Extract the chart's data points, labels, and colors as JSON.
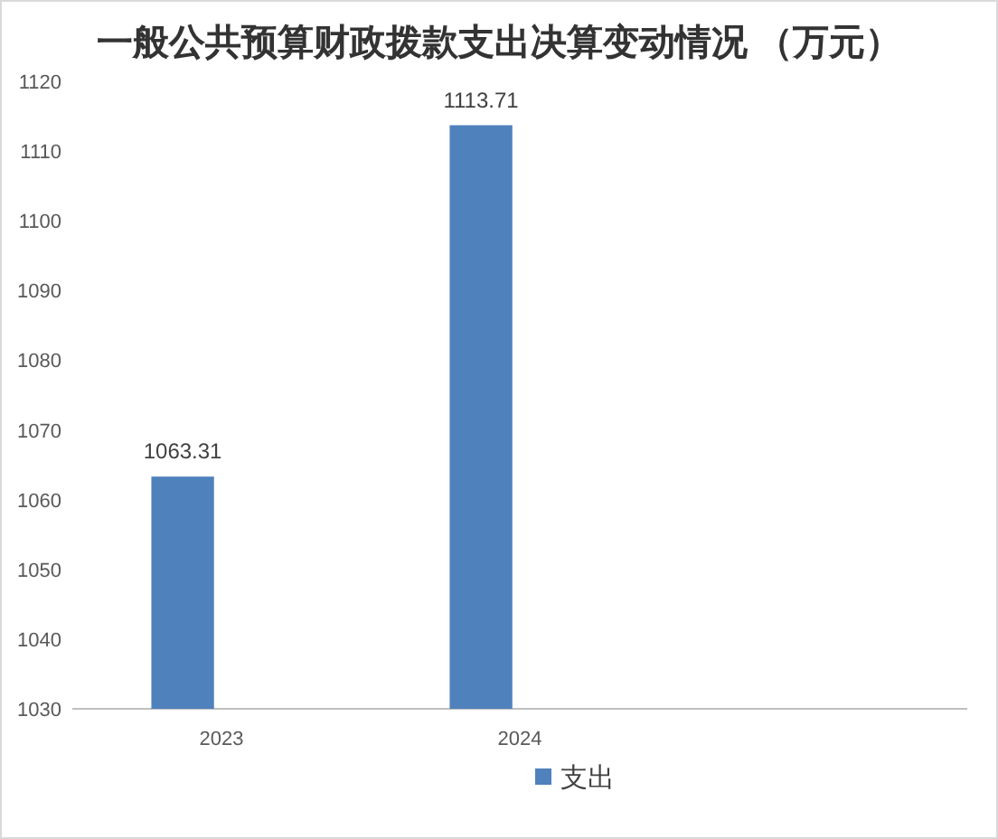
{
  "chart_data": {
    "type": "bar",
    "title": "一般公共预算财政拨款支出决算变动情况 （万元）",
    "categories": [
      "2023",
      "2024",
      null
    ],
    "series": [
      {
        "name": "支出",
        "color": "#4f81bd",
        "values": [
          1063.31,
          1113.71,
          null
        ]
      }
    ],
    "ylim": [
      1030,
      1120
    ],
    "yticks": [
      1030,
      1040,
      1050,
      1060,
      1070,
      1080,
      1090,
      1100,
      1110,
      1120
    ],
    "data_labels": true,
    "legend": "bottom",
    "grid": false
  }
}
